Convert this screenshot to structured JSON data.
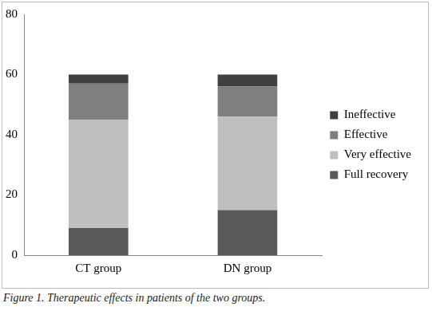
{
  "chart_data": {
    "type": "bar",
    "stacked": true,
    "caption": "Figure 1. Therapeutic effects in patients of the two groups.",
    "categories": [
      "CT group",
      "DN group"
    ],
    "series": [
      {
        "name": "Full recovery",
        "color": "#595959",
        "values": [
          9,
          15
        ]
      },
      {
        "name": "Very effective",
        "color": "#bfbfbf",
        "values": [
          36,
          31
        ]
      },
      {
        "name": "Effective",
        "color": "#7f7f7f",
        "values": [
          12,
          10
        ]
      },
      {
        "name": "Ineffective",
        "color": "#404040",
        "values": [
          3,
          4
        ]
      }
    ],
    "ylim": [
      0,
      80
    ],
    "yticks": [
      0,
      20,
      40,
      60,
      80
    ],
    "grid": false,
    "legend": "right"
  }
}
